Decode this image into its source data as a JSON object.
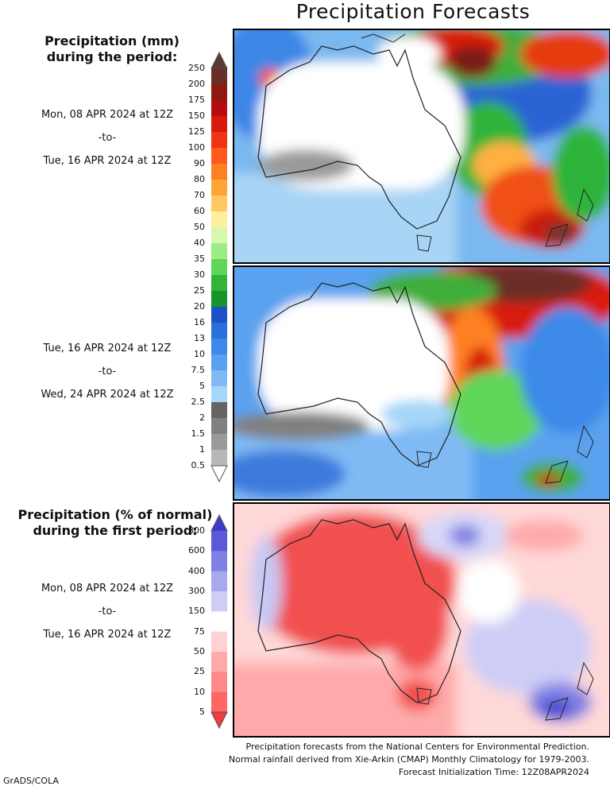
{
  "title": "Precipitation Forecasts",
  "amount": {
    "heading": [
      "Precipitation (mm)",
      "during the period:"
    ],
    "period1": [
      "Mon, 08 APR 2024 at 12Z",
      "-to-",
      "Tue, 16 APR 2024 at 12Z"
    ],
    "period2": [
      "Tue, 16 APR 2024 at 12Z",
      "-to-",
      "Wed, 24 APR 2024 at 12Z"
    ],
    "colorbar": {
      "labels": [
        "250",
        "200",
        "175",
        "150",
        "125",
        "100",
        "90",
        "80",
        "70",
        "60",
        "50",
        "40",
        "35",
        "30",
        "25",
        "20",
        "16",
        "13",
        "10",
        "7.5",
        "5",
        "2.5",
        "2",
        "1.5",
        "1",
        "0.5"
      ],
      "top_color": "#5a3a36",
      "bottom_color": "#ffffff",
      "colors": [
        "#6b2e26",
        "#8c1a10",
        "#b30d0d",
        "#d81a0a",
        "#f03312",
        "#ff5a1e",
        "#ff8020",
        "#ffa535",
        "#ffc860",
        "#fff0a0",
        "#d8f8b0",
        "#9cec84",
        "#5ed65a",
        "#32b43a",
        "#16962a",
        "#1e50c8",
        "#2a70dc",
        "#3c8ae8",
        "#5aa2ef",
        "#7fbaf4",
        "#a6d6f8",
        "#646464",
        "#808080",
        "#9a9a9a",
        "#b8b8b8"
      ]
    }
  },
  "percent": {
    "heading": [
      "Precipitation (% of normal)",
      "during the first period:"
    ],
    "period": [
      "Mon, 08 APR 2024 at 12Z",
      "-to-",
      "Tue, 16 APR 2024 at 12Z"
    ],
    "colorbar": {
      "labels": [
        "800",
        "600",
        "400",
        "300",
        "150",
        "75",
        "50",
        "25",
        "10",
        "5"
      ],
      "top_color": "#3c3cd2",
      "bottom_color": "#f03c3c",
      "colors": [
        "#5a5ad8",
        "#8080e4",
        "#a8a8ee",
        "#cdcdf6",
        "#ffffff",
        "#ffd2d2",
        "#ffaaaa",
        "#ff8888",
        "#ff6666"
      ]
    }
  },
  "credits": [
    "Precipitation forecasts from the National Centers for Environmental Prediction.",
    "Normal rainfall derived from Xie-Arkin (CMAP) Monthly Climatology for 1979-2003.",
    "Forecast Initialization Time: 12Z08APR2024"
  ],
  "footer": "GrADS/COLA"
}
